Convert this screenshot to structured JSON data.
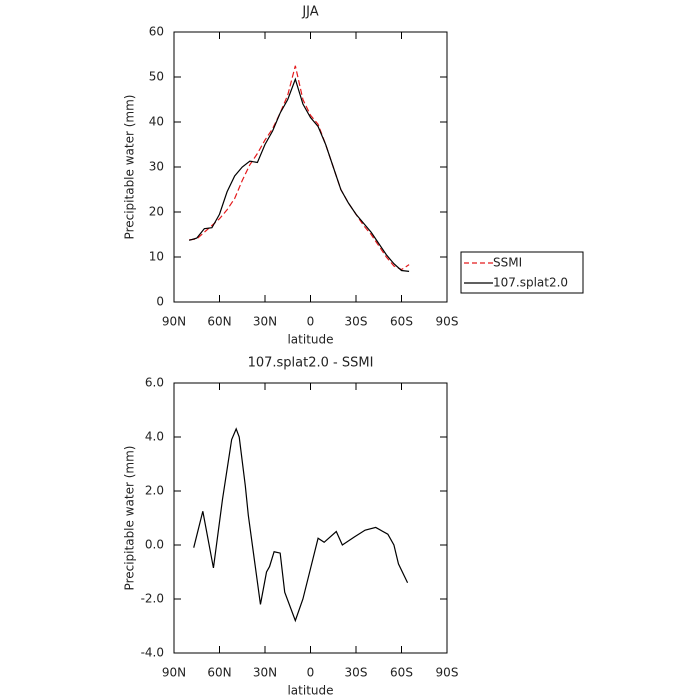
{
  "chart_data": [
    {
      "type": "line",
      "title": "JJA",
      "x_label": "latitude",
      "y_label": "Precipitable water (mm)",
      "x": [
        80,
        75,
        70,
        65,
        60,
        55,
        50,
        45,
        40,
        35,
        30,
        25,
        20,
        15,
        10,
        5,
        0,
        -5,
        -10,
        -15,
        -20,
        -25,
        -30,
        -35,
        -40,
        -45,
        -50,
        -55,
        -60,
        -65
      ],
      "series": [
        {
          "name": "SSMI",
          "color": "#e41a1c",
          "line_style": "dashed",
          "values": [
            13.8,
            14,
            15.5,
            17,
            18.5,
            20.5,
            23,
            27,
            30.5,
            33,
            36,
            38.5,
            42,
            46,
            52.5,
            45,
            41.5,
            39.5,
            35,
            30,
            25,
            22,
            19.5,
            17,
            15,
            12.5,
            10,
            8,
            7.2,
            8.3
          ]
        },
        {
          "name": "107.splat2.0",
          "color": "#000000",
          "line_style": "solid",
          "values": [
            13.7,
            14.2,
            16.3,
            16.5,
            19.5,
            24.5,
            28,
            30,
            31.3,
            31,
            35,
            38,
            42,
            45,
            49.5,
            44,
            41,
            39,
            35,
            30,
            25,
            22,
            19.5,
            17.5,
            15.5,
            13,
            10.5,
            8.5,
            7,
            6.8
          ]
        }
      ],
      "xlim": [
        90,
        -90
      ],
      "xticks": [
        {
          "value": 90,
          "label": "90N"
        },
        {
          "value": 60,
          "label": "60N"
        },
        {
          "value": 30,
          "label": "30N"
        },
        0,
        {
          "value": -30,
          "label": "30S"
        },
        {
          "value": -60,
          "label": "60S"
        },
        {
          "value": -90,
          "label": "90S"
        }
      ],
      "ylim": [
        0,
        60
      ],
      "yticks": [
        0,
        10,
        20,
        30,
        40,
        50,
        60
      ],
      "legend": "outside-right"
    },
    {
      "type": "line",
      "title": "107.splat2.0 - SSMI",
      "x_label": "latitude",
      "y_label": "Precipitable water (mm)",
      "x": [
        77,
        71,
        64,
        58,
        52,
        49,
        47,
        43,
        41,
        33,
        29,
        27,
        24,
        20,
        17,
        10,
        5,
        -5,
        -9,
        -17,
        -21,
        -29,
        -36,
        -43,
        -51,
        -55,
        -58,
        -64
      ],
      "series": [
        {
          "name": "107.splat2.0 - SSMI",
          "color": "#000000",
          "line_style": "solid",
          "values": [
            -0.1,
            1.25,
            -0.85,
            1.7,
            3.9,
            4.3,
            4.0,
            2.2,
            1.1,
            -2.2,
            -1.0,
            -0.8,
            -0.25,
            -0.3,
            -1.75,
            -2.8,
            -2.0,
            0.25,
            0.1,
            0.5,
            0.0,
            0.3,
            0.55,
            0.65,
            0.4,
            0.0,
            -0.7,
            -1.4
          ]
        }
      ],
      "xlim": [
        90,
        -90
      ],
      "xticks": [
        {
          "value": 90,
          "label": "90N"
        },
        {
          "value": 60,
          "label": "60N"
        },
        {
          "value": 30,
          "label": "30N"
        },
        0,
        {
          "value": -30,
          "label": "30S"
        },
        {
          "value": -60,
          "label": "60S"
        },
        {
          "value": -90,
          "label": "90S"
        }
      ],
      "ylim": [
        -4,
        6
      ],
      "yticks": [
        {
          "value": -4,
          "label": "-4.0"
        },
        {
          "value": -2,
          "label": "-2.0"
        },
        {
          "value": 0,
          "label": "0.0"
        },
        {
          "value": 2,
          "label": "2.0"
        },
        {
          "value": 4,
          "label": "4.0"
        },
        {
          "value": 6,
          "label": "6.0"
        }
      ]
    }
  ]
}
